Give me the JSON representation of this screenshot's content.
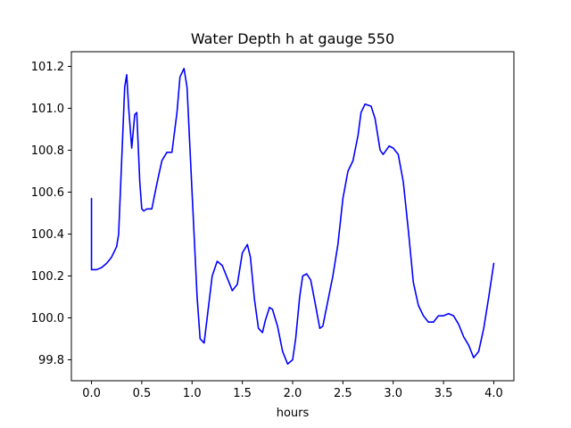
{
  "chart_data": {
    "type": "line",
    "title": "Water Depth h at gauge 550",
    "xlabel": "hours",
    "ylabel": "",
    "xlim": [
      -0.2,
      4.2
    ],
    "ylim": [
      99.7,
      101.27
    ],
    "xticks": [
      0.0,
      0.5,
      1.0,
      1.5,
      2.0,
      2.5,
      3.0,
      3.5,
      4.0
    ],
    "xtick_labels": [
      "0.0",
      "0.5",
      "1.0",
      "1.5",
      "2.0",
      "2.5",
      "3.0",
      "3.5",
      "4.0"
    ],
    "yticks": [
      99.8,
      100.0,
      100.2,
      100.4,
      100.6,
      100.8,
      101.0,
      101.2
    ],
    "ytick_labels": [
      "99.8",
      "100.0",
      "100.2",
      "100.4",
      "100.6",
      "100.8",
      "101.0",
      "101.2"
    ],
    "grid": false,
    "series": [
      {
        "color": "#0000ff",
        "x": [
          0.0,
          0.0,
          0.05,
          0.1,
          0.15,
          0.2,
          0.25,
          0.27,
          0.3,
          0.33,
          0.35,
          0.37,
          0.4,
          0.43,
          0.45,
          0.48,
          0.5,
          0.52,
          0.55,
          0.6,
          0.65,
          0.7,
          0.75,
          0.8,
          0.85,
          0.88,
          0.92,
          0.95,
          0.98,
          1.01,
          1.05,
          1.08,
          1.12,
          1.15,
          1.2,
          1.25,
          1.3,
          1.35,
          1.4,
          1.45,
          1.5,
          1.55,
          1.58,
          1.62,
          1.66,
          1.7,
          1.73,
          1.77,
          1.8,
          1.85,
          1.9,
          1.95,
          2.0,
          2.03,
          2.07,
          2.1,
          2.14,
          2.18,
          2.22,
          2.27,
          2.3,
          2.35,
          2.4,
          2.45,
          2.5,
          2.55,
          2.6,
          2.65,
          2.68,
          2.72,
          2.78,
          2.82,
          2.87,
          2.9,
          2.96,
          3.0,
          3.05,
          3.1,
          3.15,
          3.2,
          3.25,
          3.3,
          3.35,
          3.4,
          3.45,
          3.5,
          3.55,
          3.6,
          3.65,
          3.7,
          3.75,
          3.8,
          3.85,
          3.9,
          3.95,
          4.0
        ],
        "y": [
          100.57,
          100.23,
          100.23,
          100.24,
          100.26,
          100.29,
          100.34,
          100.4,
          100.75,
          101.1,
          101.16,
          101.0,
          100.81,
          100.97,
          100.98,
          100.65,
          100.52,
          100.51,
          100.52,
          100.52,
          100.64,
          100.75,
          100.79,
          100.79,
          100.98,
          101.15,
          101.19,
          101.1,
          100.8,
          100.5,
          100.1,
          99.9,
          99.88,
          100.0,
          100.2,
          100.27,
          100.25,
          100.19,
          100.13,
          100.16,
          100.31,
          100.35,
          100.29,
          100.09,
          99.95,
          99.93,
          99.99,
          100.05,
          100.04,
          99.96,
          99.84,
          99.78,
          99.8,
          99.9,
          100.1,
          100.2,
          100.21,
          100.18,
          100.08,
          99.95,
          99.96,
          100.08,
          100.2,
          100.35,
          100.57,
          100.7,
          100.75,
          100.87,
          100.98,
          101.02,
          101.01,
          100.95,
          100.8,
          100.78,
          100.82,
          100.81,
          100.78,
          100.65,
          100.42,
          100.17,
          100.06,
          100.01,
          99.98,
          99.98,
          100.01,
          100.01,
          100.02,
          100.01,
          99.97,
          99.91,
          99.87,
          99.81,
          99.84,
          99.95,
          100.1,
          100.26
        ]
      }
    ]
  }
}
